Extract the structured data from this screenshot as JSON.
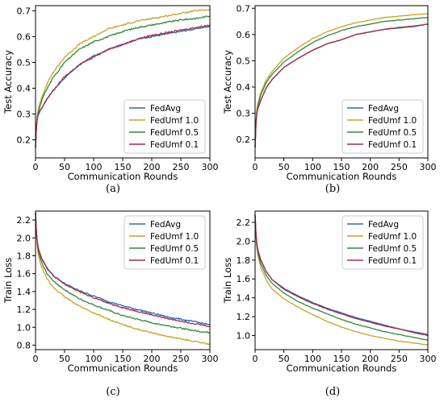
{
  "figure": {
    "captions": [
      "(a)",
      "(b)",
      "(c)",
      "(d)"
    ]
  },
  "chart_data": [
    {
      "type": "line",
      "xlabel": "Communication Rounds",
      "ylabel": "Test Accuracy",
      "xlim": [
        0,
        300
      ],
      "ylim": [
        0.13,
        0.72
      ],
      "xticks": [
        "0",
        "50",
        "100",
        "150",
        "200",
        "250",
        "300"
      ],
      "yticks": [
        "0.2",
        "0.3",
        "0.4",
        "0.5",
        "0.6",
        "0.7"
      ],
      "grid": false,
      "legend_position": "lower-right",
      "x": [
        0,
        2,
        5,
        10,
        20,
        30,
        50,
        75,
        100,
        125,
        150,
        175,
        200,
        225,
        250,
        275,
        300
      ],
      "series": [
        {
          "name": "FedAvg",
          "color": "#2b6cb0",
          "values": [
            0.17,
            0.27,
            0.3,
            0.32,
            0.36,
            0.39,
            0.44,
            0.49,
            0.52,
            0.55,
            0.57,
            0.59,
            0.6,
            0.61,
            0.62,
            0.63,
            0.64
          ]
        },
        {
          "name": "FedUmf 1.0",
          "color": "#c9a227",
          "values": [
            0.17,
            0.28,
            0.32,
            0.36,
            0.42,
            0.46,
            0.52,
            0.57,
            0.6,
            0.63,
            0.645,
            0.66,
            0.67,
            0.68,
            0.69,
            0.7,
            0.705
          ]
        },
        {
          "name": "FedUmf 0.5",
          "color": "#2e8b3a",
          "values": [
            0.17,
            0.28,
            0.31,
            0.35,
            0.4,
            0.44,
            0.5,
            0.55,
            0.58,
            0.6,
            0.62,
            0.635,
            0.645,
            0.655,
            0.665,
            0.67,
            0.68
          ]
        },
        {
          "name": "FedUmf 0.1",
          "color": "#a52a4a",
          "values": [
            0.17,
            0.27,
            0.3,
            0.32,
            0.36,
            0.39,
            0.445,
            0.49,
            0.525,
            0.55,
            0.57,
            0.59,
            0.605,
            0.615,
            0.625,
            0.635,
            0.645
          ]
        }
      ]
    },
    {
      "type": "line",
      "xlabel": "Communication Rounds",
      "ylabel": "Test Accuracy",
      "xlim": [
        0,
        300
      ],
      "ylim": [
        0.13,
        0.71
      ],
      "xticks": [
        "0",
        "50",
        "100",
        "150",
        "200",
        "250",
        "300"
      ],
      "yticks": [
        "0.2",
        "0.3",
        "0.4",
        "0.5",
        "0.6",
        "0.7"
      ],
      "grid": false,
      "legend_position": "lower-right",
      "x": [
        0,
        2,
        5,
        10,
        20,
        30,
        50,
        75,
        100,
        125,
        150,
        175,
        200,
        225,
        250,
        275,
        300
      ],
      "series": [
        {
          "name": "FedAvg",
          "color": "#2b6cb0",
          "values": [
            0.17,
            0.29,
            0.32,
            0.35,
            0.4,
            0.43,
            0.475,
            0.51,
            0.54,
            0.565,
            0.58,
            0.6,
            0.61,
            0.62,
            0.625,
            0.63,
            0.64
          ]
        },
        {
          "name": "FedUmf 1.0",
          "color": "#c9a227",
          "values": [
            0.17,
            0.3,
            0.34,
            0.38,
            0.43,
            0.46,
            0.51,
            0.55,
            0.585,
            0.61,
            0.63,
            0.645,
            0.655,
            0.665,
            0.67,
            0.675,
            0.68
          ]
        },
        {
          "name": "FedUmf 0.5",
          "color": "#2e8b3a",
          "values": [
            0.17,
            0.29,
            0.33,
            0.37,
            0.42,
            0.45,
            0.495,
            0.535,
            0.57,
            0.595,
            0.615,
            0.63,
            0.64,
            0.65,
            0.655,
            0.66,
            0.665
          ]
        },
        {
          "name": "FedUmf 0.1",
          "color": "#a52a4a",
          "values": [
            0.17,
            0.29,
            0.32,
            0.35,
            0.4,
            0.43,
            0.475,
            0.51,
            0.54,
            0.565,
            0.58,
            0.6,
            0.61,
            0.62,
            0.627,
            0.632,
            0.64
          ]
        }
      ]
    },
    {
      "type": "line",
      "xlabel": "Communication Rounds",
      "ylabel": "Train Loss",
      "xlim": [
        0,
        300
      ],
      "ylim": [
        0.75,
        2.3
      ],
      "xticks": [
        "0",
        "50",
        "100",
        "150",
        "200",
        "250",
        "300"
      ],
      "yticks": [
        "0.8",
        "1.0",
        "1.2",
        "1.4",
        "1.6",
        "1.8",
        "2.0",
        "2.2"
      ],
      "grid": false,
      "legend_position": "top-right",
      "x": [
        0,
        2,
        5,
        10,
        20,
        30,
        50,
        75,
        100,
        125,
        150,
        175,
        200,
        225,
        250,
        275,
        300
      ],
      "series": [
        {
          "name": "FedAvg",
          "color": "#2b6cb0",
          "values": [
            2.28,
            2.0,
            1.88,
            1.78,
            1.66,
            1.58,
            1.49,
            1.41,
            1.35,
            1.29,
            1.24,
            1.2,
            1.16,
            1.12,
            1.09,
            1.06,
            1.03
          ]
        },
        {
          "name": "FedUmf 1.0",
          "color": "#c9a227",
          "values": [
            2.28,
            1.95,
            1.8,
            1.68,
            1.54,
            1.45,
            1.34,
            1.24,
            1.16,
            1.09,
            1.03,
            0.98,
            0.94,
            0.9,
            0.87,
            0.84,
            0.81
          ]
        },
        {
          "name": "FedUmf 0.5",
          "color": "#2e8b3a",
          "values": [
            2.28,
            1.98,
            1.85,
            1.73,
            1.6,
            1.52,
            1.42,
            1.32,
            1.25,
            1.19,
            1.13,
            1.09,
            1.05,
            1.02,
            0.99,
            0.96,
            0.94
          ]
        },
        {
          "name": "FedUmf 0.1",
          "color": "#a52a4a",
          "values": [
            2.28,
            2.0,
            1.88,
            1.78,
            1.66,
            1.58,
            1.48,
            1.4,
            1.33,
            1.27,
            1.22,
            1.18,
            1.14,
            1.1,
            1.07,
            1.04,
            1.01
          ]
        }
      ]
    },
    {
      "type": "line",
      "xlabel": "Communication Rounds",
      "ylabel": "Train Loss",
      "xlim": [
        0,
        300
      ],
      "ylim": [
        0.85,
        2.32
      ],
      "xticks": [
        "0",
        "50",
        "100",
        "150",
        "200",
        "250",
        "300"
      ],
      "yticks": [
        "1.0",
        "1.2",
        "1.4",
        "1.6",
        "1.8",
        "2.0",
        "2.2"
      ],
      "grid": false,
      "legend_position": "top-right",
      "x": [
        0,
        2,
        5,
        10,
        20,
        30,
        50,
        75,
        100,
        125,
        150,
        175,
        200,
        225,
        250,
        275,
        300
      ],
      "series": [
        {
          "name": "FedAvg",
          "color": "#2b6cb0",
          "values": [
            2.28,
            2.02,
            1.9,
            1.8,
            1.67,
            1.59,
            1.5,
            1.42,
            1.35,
            1.29,
            1.24,
            1.19,
            1.15,
            1.11,
            1.07,
            1.04,
            1.01
          ]
        },
        {
          "name": "FedUmf 1.0",
          "color": "#c9a227",
          "values": [
            2.28,
            1.98,
            1.84,
            1.72,
            1.58,
            1.49,
            1.39,
            1.3,
            1.22,
            1.15,
            1.09,
            1.04,
            1.0,
            0.97,
            0.94,
            0.92,
            0.9
          ]
        },
        {
          "name": "FedUmf 0.5",
          "color": "#2e8b3a",
          "values": [
            2.28,
            2.0,
            1.87,
            1.76,
            1.63,
            1.55,
            1.45,
            1.36,
            1.29,
            1.23,
            1.17,
            1.12,
            1.08,
            1.04,
            1.01,
            0.98,
            0.95
          ]
        },
        {
          "name": "FedUmf 0.1",
          "color": "#a52a4a",
          "values": [
            2.28,
            2.02,
            1.9,
            1.8,
            1.67,
            1.59,
            1.49,
            1.41,
            1.34,
            1.28,
            1.23,
            1.18,
            1.14,
            1.1,
            1.07,
            1.03,
            1.0
          ]
        }
      ]
    }
  ]
}
